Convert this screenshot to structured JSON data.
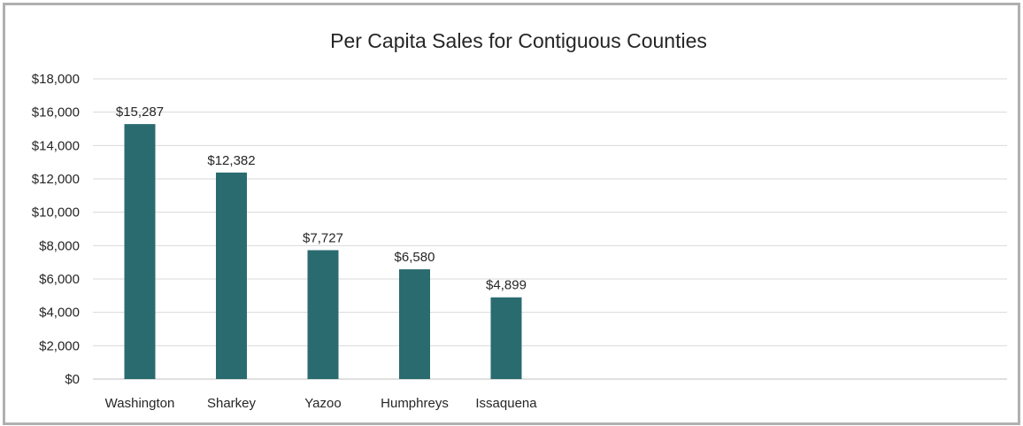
{
  "chart_data": {
    "type": "bar",
    "title": "Per Capita Sales for Contiguous Counties",
    "xlabel": "",
    "ylabel": "",
    "categories": [
      "Washington",
      "Sharkey",
      "Yazoo",
      "Humphreys",
      "Issaquena"
    ],
    "values": [
      15287,
      12382,
      7727,
      6580,
      4899
    ],
    "data_labels": [
      "$15,287",
      "$12,382",
      "$7,727",
      "$6,580",
      "$4,899"
    ],
    "ylim": [
      0,
      18000
    ],
    "yticks": [
      0,
      2000,
      4000,
      6000,
      8000,
      10000,
      12000,
      14000,
      16000,
      18000
    ],
    "ytick_labels": [
      "$0",
      "$2,000",
      "$4,000",
      "$6,000",
      "$8,000",
      "$10,000",
      "$12,000",
      "$14,000",
      "$16,000",
      "$18,000"
    ],
    "grid": true,
    "legend": "none",
    "bar_color": "#2a6b70"
  }
}
